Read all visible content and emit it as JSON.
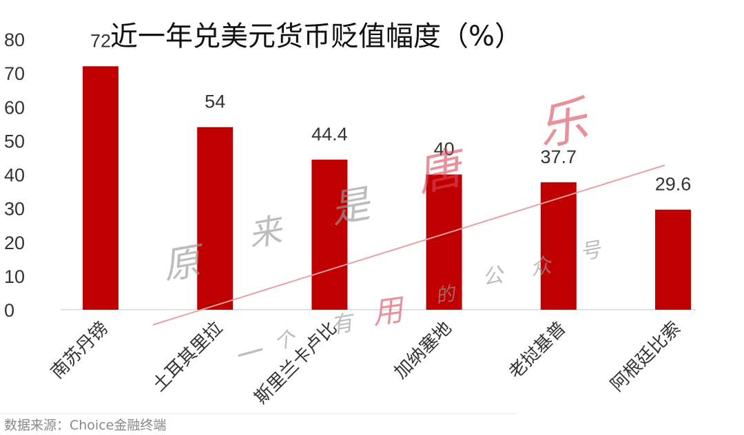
{
  "chart_data": {
    "type": "bar",
    "title": "近一年兑美元货币贬值幅度（%）",
    "categories": [
      "南苏丹镑",
      "土耳其里拉",
      "斯里兰卡卢比",
      "加纳塞地",
      "老挝基普",
      "阿根廷比索"
    ],
    "values": [
      72,
      54,
      44.4,
      40,
      37.7,
      29.6
    ],
    "data_labels": [
      "72",
      "54",
      "44.4",
      "40",
      "37.7",
      "29.6"
    ],
    "y_ticks": [
      "0",
      "10",
      "20",
      "30",
      "40",
      "50",
      "60",
      "70",
      "80"
    ],
    "ylim": [
      0,
      80
    ],
    "xlabel": "",
    "ylabel": "",
    "grid": false,
    "bar_color": "#c00000"
  },
  "source": "数据来源：Choice金融终端",
  "watermark": {
    "gray_chars": [
      "原",
      "来",
      "是",
      "一",
      "个",
      "有",
      "的",
      "公",
      "众",
      "号"
    ],
    "red_chars": [
      "唐",
      "乐",
      "用"
    ],
    "line_color": "#e8a0a8"
  }
}
